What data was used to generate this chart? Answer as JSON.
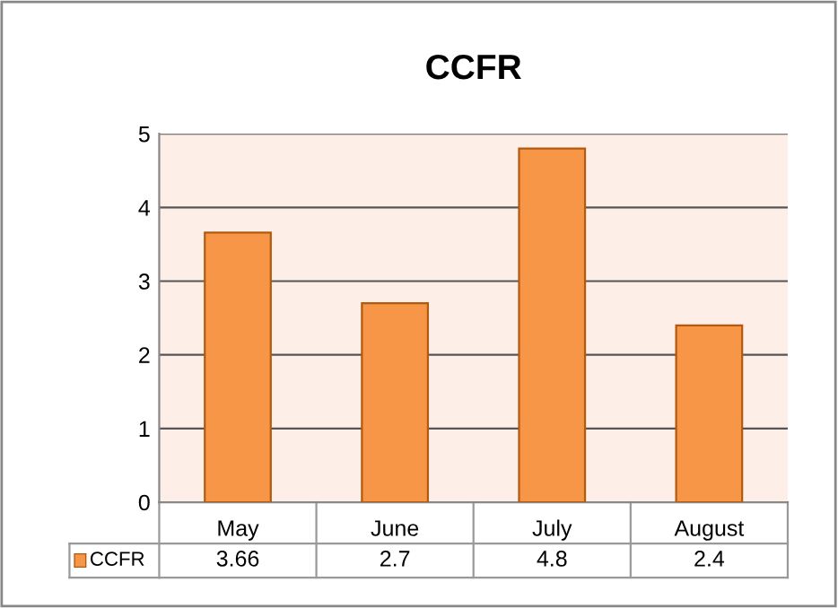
{
  "chart_data": {
    "type": "bar",
    "title": "CCFR",
    "categories": [
      "May",
      "June",
      "July",
      "August"
    ],
    "series": [
      {
        "name": "CCFR",
        "color": "#f79646",
        "values": [
          3.66,
          2.7,
          4.8,
          2.4
        ]
      }
    ],
    "ylim": [
      0,
      5
    ],
    "yticks": [
      0,
      1,
      2,
      3,
      4,
      5
    ],
    "grid": "y",
    "data_labels": true,
    "legend": "bottom"
  }
}
